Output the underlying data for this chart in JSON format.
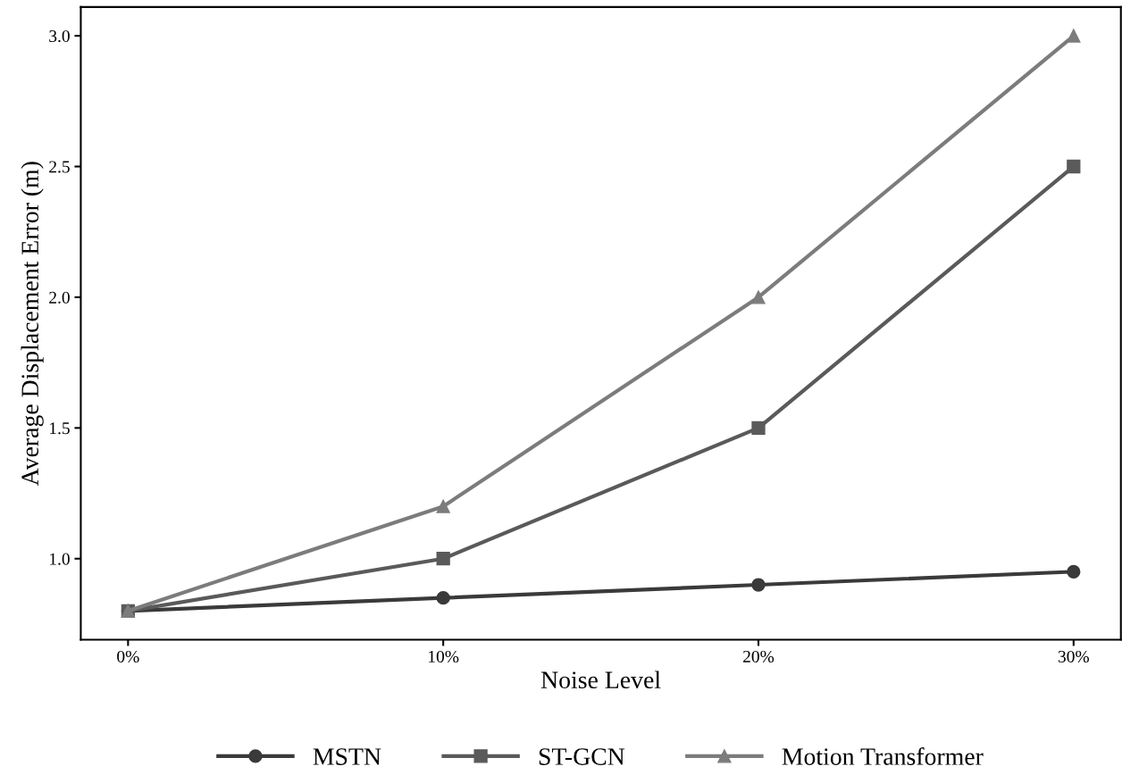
{
  "chart_data": {
    "type": "line",
    "xlabel": "Noise Level",
    "ylabel": "Average Displacement Error (m)",
    "categories": [
      "0%",
      "10%",
      "20%",
      "30%"
    ],
    "series": [
      {
        "name": "MSTN",
        "color": "#3a3a3a",
        "marker": "circle",
        "values": [
          0.8,
          0.85,
          0.9,
          0.95
        ]
      },
      {
        "name": "ST-GCN",
        "color": "#5a5a5a",
        "marker": "square",
        "values": [
          0.8,
          1.0,
          1.5,
          2.5
        ]
      },
      {
        "name": "Motion Transformer",
        "color": "#7c7c7c",
        "marker": "triangle",
        "values": [
          0.8,
          1.2,
          2.0,
          3.0
        ]
      }
    ],
    "ylim": [
      0.69,
      3.11
    ],
    "yticks": [
      {
        "value": 1.0,
        "label": "1.0"
      },
      {
        "value": 1.5,
        "label": "1.5"
      },
      {
        "value": 2.0,
        "label": "2.0"
      },
      {
        "value": 2.5,
        "label": "2.5"
      },
      {
        "value": 3.0,
        "label": "3.0"
      }
    ],
    "grid": false,
    "legend": "bottom",
    "line_style": "solid"
  }
}
